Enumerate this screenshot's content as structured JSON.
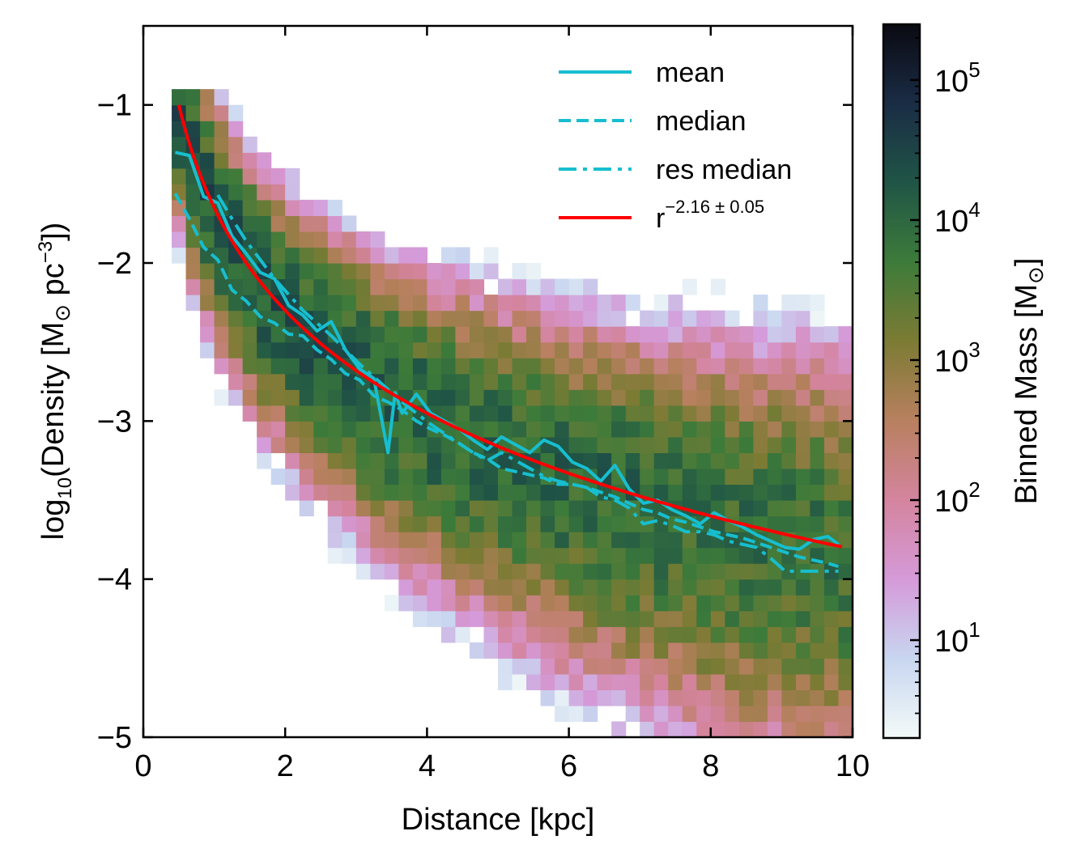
{
  "chart_data": {
    "type": "heatmap",
    "title": "",
    "xlabel": "Distance [kpc]",
    "ylabel": {
      "prefix": "log",
      "prefix_sub": "10",
      "middle": "(Density [M",
      "sun_symbol": "⊙",
      "unit": " pc",
      "unit_sup": "−3",
      "suffix": "])"
    },
    "xlim": [
      0,
      10
    ],
    "ylim": [
      -5,
      -0.5
    ],
    "xticks": [
      0,
      2,
      4,
      6,
      8,
      10
    ],
    "xtick_labels": [
      "0",
      "2",
      "4",
      "6",
      "8",
      "10"
    ],
    "yticks": [
      -5,
      -4,
      -3,
      -2,
      -1
    ],
    "ytick_labels": [
      "−5",
      "−4",
      "−3",
      "−2",
      "−1"
    ],
    "grid": false,
    "legend_position": "top-right",
    "colorbar": {
      "label_text": "Binned Mass [M",
      "label_sun": "⊙",
      "label_end": "]",
      "scale": "log",
      "range": [
        2,
        250000
      ],
      "ticks": [
        10,
        100,
        1000,
        10000,
        100000
      ],
      "tick_bases": [
        "10",
        "10",
        "10",
        "10",
        "10"
      ],
      "tick_exps": [
        "1",
        "2",
        "3",
        "4",
        "5"
      ],
      "colormap_stops": [
        "#f3faf8",
        "#c8d6f0",
        "#d59ad9",
        "#d4849e",
        "#b8805f",
        "#7c7b34",
        "#3d7b3a",
        "#205546",
        "#1a2c45",
        "#0a0a12"
      ]
    },
    "histogram": {
      "x_range": [
        0.4,
        9.9
      ],
      "bin_width_x": 0.2,
      "bin_height_y": 0.1,
      "mass_scale": "log"
    },
    "series": [
      {
        "name": "mean",
        "style": "solid",
        "color": "#17becf",
        "x": [
          0.45,
          0.65,
          0.85,
          1.05,
          1.25,
          1.45,
          1.65,
          1.85,
          2.05,
          2.25,
          2.45,
          2.65,
          2.85,
          3.05,
          3.25,
          3.45,
          3.55,
          3.65,
          3.85,
          4.05,
          4.25,
          4.45,
          4.65,
          4.85,
          5.05,
          5.25,
          5.45,
          5.65,
          5.85,
          6.05,
          6.25,
          6.45,
          6.65,
          6.85,
          7.05,
          7.25,
          7.45,
          7.65,
          7.85,
          8.05,
          8.25,
          8.45,
          8.65,
          8.85,
          9.05,
          9.25,
          9.45,
          9.65,
          9.8
        ],
        "y": [
          -1.3,
          -1.32,
          -1.58,
          -1.62,
          -1.83,
          -1.94,
          -2.06,
          -2.1,
          -2.27,
          -2.33,
          -2.43,
          -2.37,
          -2.55,
          -2.67,
          -2.73,
          -3.2,
          -2.82,
          -2.95,
          -2.83,
          -2.95,
          -3.0,
          -3.05,
          -3.12,
          -3.18,
          -3.1,
          -3.15,
          -3.2,
          -3.12,
          -3.16,
          -3.26,
          -3.3,
          -3.38,
          -3.28,
          -3.43,
          -3.52,
          -3.5,
          -3.56,
          -3.6,
          -3.65,
          -3.58,
          -3.63,
          -3.67,
          -3.72,
          -3.76,
          -3.8,
          -3.81,
          -3.75,
          -3.73,
          -3.78
        ]
      },
      {
        "name": "median",
        "style": "dashed",
        "color": "#17becf",
        "x": [
          0.45,
          0.65,
          0.85,
          1.05,
          1.25,
          1.45,
          1.65,
          1.85,
          2.05,
          2.25,
          2.45,
          2.65,
          2.85,
          3.05,
          3.25,
          3.45,
          3.65,
          3.85,
          4.05,
          4.25,
          4.45,
          4.65,
          4.85,
          5.05,
          5.25,
          5.45,
          5.65,
          5.85,
          6.05,
          6.25,
          6.45,
          6.65,
          6.85,
          7.05,
          7.25,
          7.45,
          7.65,
          7.85,
          8.05,
          8.25,
          8.45,
          8.65,
          8.85,
          9.05,
          9.25,
          9.45,
          9.65,
          9.8
        ],
        "y": [
          -1.56,
          -1.72,
          -1.9,
          -1.98,
          -2.17,
          -2.24,
          -2.34,
          -2.38,
          -2.45,
          -2.46,
          -2.55,
          -2.61,
          -2.7,
          -2.74,
          -2.84,
          -2.88,
          -2.93,
          -3.0,
          -3.05,
          -3.09,
          -3.14,
          -3.2,
          -3.24,
          -3.3,
          -3.32,
          -3.34,
          -3.36,
          -3.4,
          -3.4,
          -3.42,
          -3.45,
          -3.48,
          -3.52,
          -3.56,
          -3.58,
          -3.62,
          -3.64,
          -3.67,
          -3.7,
          -3.72,
          -3.74,
          -3.77,
          -3.8,
          -3.83,
          -3.86,
          -3.88,
          -3.9,
          -3.92
        ]
      },
      {
        "name": "res median",
        "style": "dashdot",
        "color": "#17becf",
        "x": [
          1.05,
          1.25,
          1.45,
          1.65,
          1.85,
          2.05,
          2.25,
          2.45,
          2.65,
          2.85,
          3.05,
          3.25,
          3.45,
          3.65,
          3.85,
          4.05,
          4.25,
          4.45,
          4.65,
          4.85,
          5.05,
          5.25,
          5.45,
          5.65,
          5.85,
          6.05,
          6.25,
          6.45,
          6.65,
          6.85,
          7.05,
          7.25,
          7.45,
          7.65,
          7.85,
          8.05,
          8.25,
          8.45,
          8.65,
          8.85,
          9.05,
          9.25,
          9.45,
          9.65,
          9.8
        ],
        "y": [
          -1.57,
          -1.72,
          -1.86,
          -1.98,
          -2.1,
          -2.2,
          -2.3,
          -2.38,
          -2.46,
          -2.55,
          -2.64,
          -2.72,
          -2.8,
          -2.88,
          -2.95,
          -3.02,
          -3.08,
          -3.14,
          -3.2,
          -3.25,
          -3.2,
          -3.25,
          -3.3,
          -3.35,
          -3.38,
          -3.4,
          -3.42,
          -3.48,
          -3.5,
          -3.55,
          -3.65,
          -3.63,
          -3.66,
          -3.7,
          -3.7,
          -3.72,
          -3.76,
          -3.78,
          -3.8,
          -3.87,
          -3.95,
          -3.95,
          -3.95,
          -3.95,
          -3.95
        ]
      },
      {
        "name": "r",
        "name_sup": "−2.16 ± 0.05",
        "style": "solid",
        "color": "#ff0000",
        "power_law": {
          "exponent": -2.16,
          "amplitude_log10": -1.65,
          "x_start": 0.5,
          "x_end": 9.85
        }
      }
    ]
  }
}
